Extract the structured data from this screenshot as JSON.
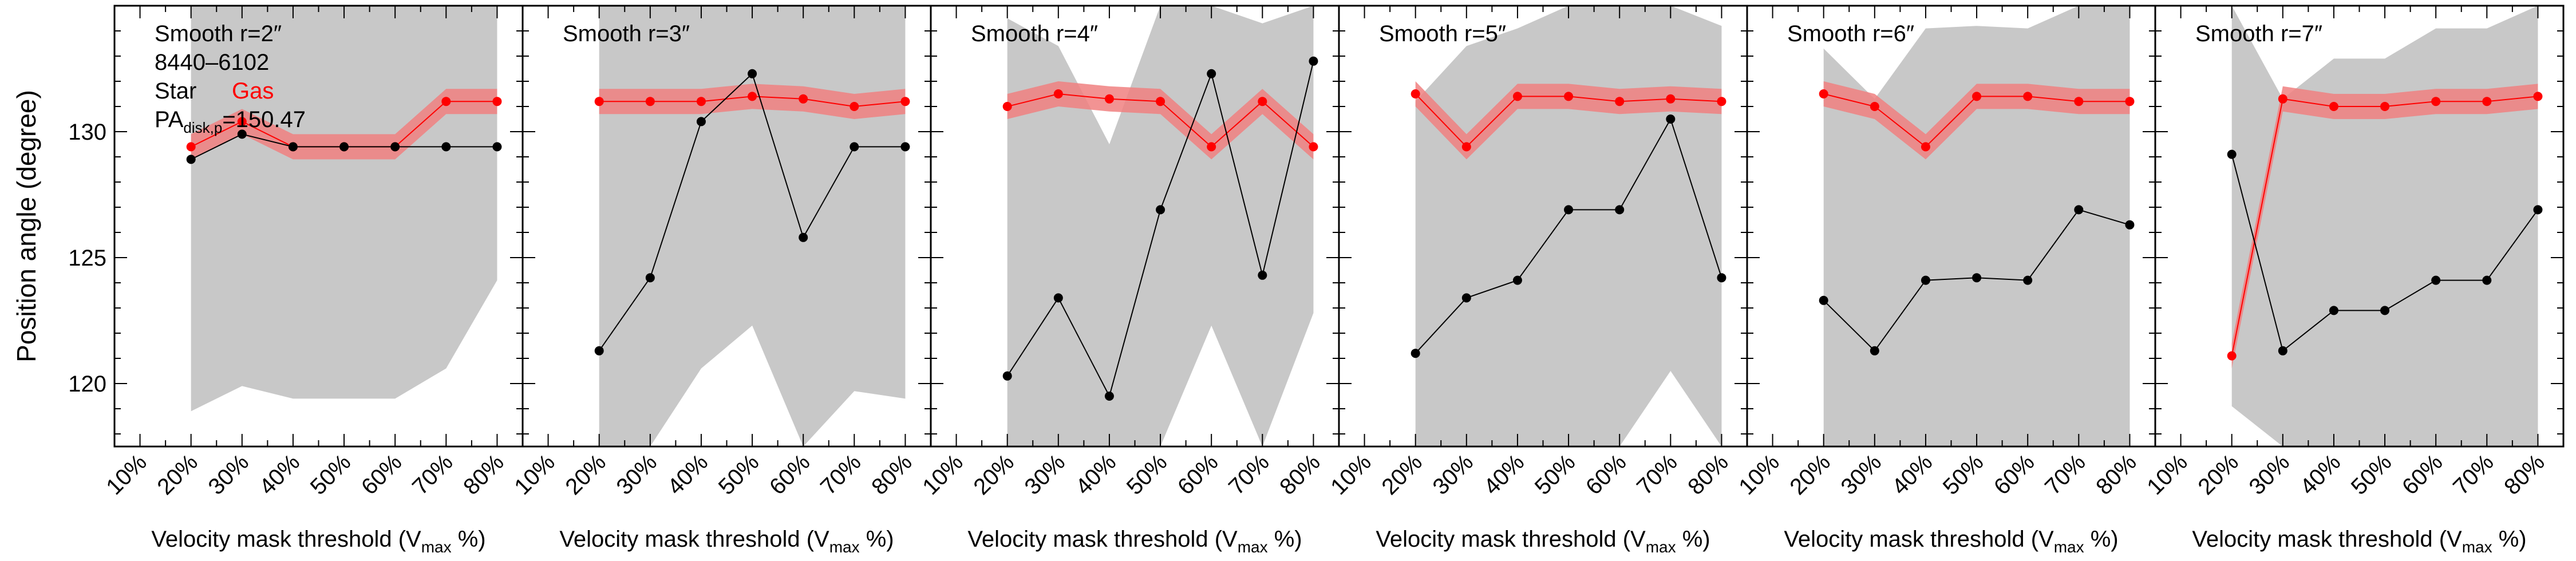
{
  "figure": {
    "ylabel": "Position angle (degree)",
    "xlabel_main": "Velocity mask threshold (V",
    "xlabel_sub": "max",
    "xlabel_end": " %)",
    "y_ticks": [
      "120",
      "125",
      "130"
    ],
    "x_ticks": [
      "10%",
      "20%",
      "30%",
      "40%",
      "50%",
      "60%",
      "70%",
      "80%"
    ],
    "legend": {
      "galaxy_id": "8440–6102",
      "star_label": "Star",
      "gas_label": "Gas",
      "pa_prefix": "PA",
      "pa_sub": "disk,p",
      "pa_value": "=150.47"
    },
    "colors": {
      "star": "#000000",
      "gas": "#ff0000",
      "gas_band": "#f08080",
      "star_band": "#c8c8c8"
    }
  },
  "chart_data": [
    {
      "type": "line",
      "title": "Smooth r=2″",
      "x": [
        20,
        30,
        40,
        50,
        60,
        70,
        80
      ],
      "xlim": [
        5,
        85
      ],
      "ylim": [
        117.5,
        135
      ],
      "series": [
        {
          "name": "Star",
          "values": [
            128.9,
            129.9,
            129.4,
            129.4,
            129.4,
            129.4,
            129.4
          ],
          "band_low": [
            118.9,
            119.9,
            119.4,
            119.4,
            119.4,
            120.6,
            124.1
          ],
          "band_high": [
            135,
            135,
            135,
            135,
            135,
            135,
            135
          ]
        },
        {
          "name": "Gas",
          "values": [
            129.4,
            130.4,
            129.4,
            129.4,
            129.4,
            131.2,
            131.2
          ],
          "band_low": [
            128.9,
            129.9,
            128.9,
            128.9,
            128.9,
            130.7,
            130.7
          ],
          "band_high": [
            129.9,
            130.9,
            129.9,
            129.9,
            129.9,
            131.7,
            131.7
          ]
        }
      ]
    },
    {
      "type": "line",
      "title": "Smooth r=3″",
      "x": [
        20,
        30,
        40,
        50,
        60,
        70,
        80
      ],
      "xlim": [
        5,
        85
      ],
      "ylim": [
        117.5,
        135
      ],
      "series": [
        {
          "name": "Star",
          "values": [
            121.3,
            124.2,
            130.4,
            132.3,
            125.8,
            129.4,
            129.4
          ],
          "band_low": [
            117.5,
            117.5,
            120.6,
            122.3,
            117.5,
            119.7,
            119.4
          ],
          "band_high": [
            135,
            135,
            135,
            135,
            135,
            135,
            135
          ]
        },
        {
          "name": "Gas",
          "values": [
            131.2,
            131.2,
            131.2,
            131.4,
            131.3,
            131.0,
            131.2
          ],
          "band_low": [
            130.7,
            130.7,
            130.7,
            130.9,
            130.8,
            130.5,
            130.7
          ],
          "band_high": [
            131.7,
            131.7,
            131.7,
            131.9,
            131.8,
            131.5,
            131.7
          ]
        }
      ]
    },
    {
      "type": "line",
      "title": "Smooth r=4″",
      "x": [
        20,
        30,
        40,
        50,
        60,
        70,
        80
      ],
      "xlim": [
        5,
        85
      ],
      "ylim": [
        117.5,
        135
      ],
      "series": [
        {
          "name": "Star",
          "values": [
            120.3,
            123.4,
            119.5,
            126.9,
            132.3,
            124.3,
            132.8
          ],
          "band_low": [
            117.5,
            117.5,
            117.5,
            117.5,
            122.3,
            117.5,
            122.8
          ],
          "band_high": [
            134.5,
            133.4,
            129.5,
            135,
            135,
            134.3,
            135
          ]
        },
        {
          "name": "Gas",
          "values": [
            131.0,
            131.5,
            131.3,
            131.2,
            129.4,
            131.2,
            129.4
          ],
          "band_low": [
            130.5,
            131.0,
            130.8,
            130.7,
            128.9,
            130.7,
            128.9
          ],
          "band_high": [
            131.5,
            132.0,
            131.8,
            131.7,
            129.9,
            131.7,
            129.9
          ]
        }
      ]
    },
    {
      "type": "line",
      "title": "Smooth r=5″",
      "x": [
        20,
        30,
        40,
        50,
        60,
        70,
        80
      ],
      "xlim": [
        5,
        85
      ],
      "ylim": [
        117.5,
        135
      ],
      "series": [
        {
          "name": "Star",
          "values": [
            121.2,
            123.4,
            124.1,
            126.9,
            126.9,
            130.5,
            124.2
          ],
          "band_low": [
            117.5,
            117.5,
            117.5,
            117.5,
            117.5,
            120.5,
            117.5
          ],
          "band_high": [
            131.2,
            133.4,
            134.1,
            135,
            135,
            135,
            134.2
          ]
        },
        {
          "name": "Gas",
          "values": [
            131.5,
            129.4,
            131.4,
            131.4,
            131.2,
            131.3,
            131.2
          ],
          "band_low": [
            131.0,
            128.9,
            130.9,
            130.9,
            130.7,
            130.8,
            130.7
          ],
          "band_high": [
            132.0,
            129.9,
            131.9,
            131.9,
            131.7,
            131.8,
            131.7
          ]
        }
      ]
    },
    {
      "type": "line",
      "title": "Smooth r=6″",
      "x": [
        20,
        30,
        40,
        50,
        60,
        70,
        80
      ],
      "xlim": [
        5,
        85
      ],
      "ylim": [
        117.5,
        135
      ],
      "series": [
        {
          "name": "Star",
          "values": [
            123.3,
            121.3,
            124.1,
            124.2,
            124.1,
            126.9,
            126.3
          ],
          "band_low": [
            117.5,
            117.5,
            117.5,
            117.5,
            117.5,
            117.5,
            117.5
          ],
          "band_high": [
            133.3,
            131.3,
            134.1,
            134.2,
            134.1,
            135,
            135
          ]
        },
        {
          "name": "Gas",
          "values": [
            131.5,
            131.0,
            129.4,
            131.4,
            131.4,
            131.2,
            131.2
          ],
          "band_low": [
            131.0,
            130.5,
            128.9,
            130.9,
            130.9,
            130.7,
            130.7
          ],
          "band_high": [
            132.0,
            131.5,
            129.9,
            131.9,
            131.9,
            131.7,
            131.7
          ]
        }
      ]
    },
    {
      "type": "line",
      "title": "Smooth r=7″",
      "x": [
        20,
        30,
        40,
        50,
        60,
        70,
        80
      ],
      "xlim": [
        5,
        85
      ],
      "ylim": [
        117.5,
        135
      ],
      "series": [
        {
          "name": "Star",
          "values": [
            129.1,
            121.3,
            122.9,
            122.9,
            124.1,
            124.1,
            126.9
          ],
          "band_low": [
            119.1,
            117.5,
            117.5,
            117.5,
            117.5,
            117.5,
            117.5
          ],
          "band_high": [
            135,
            131.3,
            132.9,
            132.9,
            134.1,
            134.1,
            135
          ]
        },
        {
          "name": "Gas",
          "values": [
            121.1,
            131.3,
            131.0,
            131.0,
            131.2,
            131.2,
            131.4
          ],
          "band_low": [
            120.6,
            130.8,
            130.5,
            130.5,
            130.7,
            130.7,
            130.9
          ],
          "band_high": [
            121.6,
            131.8,
            131.5,
            131.5,
            131.7,
            131.7,
            131.9
          ]
        }
      ]
    }
  ]
}
